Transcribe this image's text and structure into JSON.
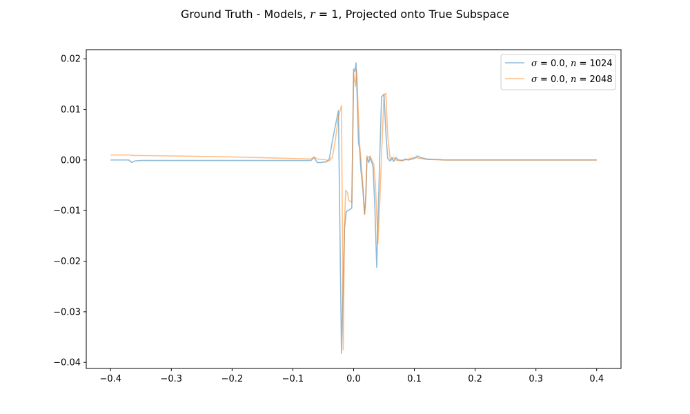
{
  "chart_data": {
    "type": "line",
    "title_parts": [
      "Ground Truth - Models, ",
      "r",
      " = 1, Projected onto True Subspace"
    ],
    "xlim": [
      -0.44,
      0.44
    ],
    "ylim": [
      -0.0412,
      0.0218
    ],
    "xticks": [
      -0.4,
      -0.3,
      -0.2,
      -0.1,
      0.0,
      0.1,
      0.2,
      0.3,
      0.4
    ],
    "xtick_labels": [
      "−0.4",
      "−0.3",
      "−0.2",
      "−0.1",
      "0.0",
      "0.1",
      "0.2",
      "0.3",
      "0.4"
    ],
    "yticks": [
      0.02,
      0.01,
      0.0,
      -0.01,
      -0.02,
      -0.03,
      -0.04
    ],
    "ytick_labels": [
      "0.02",
      "0.01",
      "0.00",
      "−0.01",
      "−0.02",
      "−0.03",
      "−0.04"
    ],
    "grid": false,
    "legend_position": "upper right",
    "series": [
      {
        "name": "σ = 0.0, n = 1024",
        "legend": {
          "sigma_sym": "σ",
          "sigma_val": " = 0.0, ",
          "n_sym": "n",
          "n_val": " = 1024"
        },
        "color": "#1f77b4",
        "x": [
          -0.4,
          -0.37,
          -0.365,
          -0.36,
          -0.35,
          -0.3,
          -0.2,
          -0.1,
          -0.07,
          -0.065,
          -0.06,
          -0.055,
          -0.05,
          -0.045,
          -0.04,
          -0.035,
          -0.03,
          -0.025,
          -0.02,
          -0.015,
          -0.012,
          -0.01,
          -0.008,
          -0.005,
          -0.003,
          0.0,
          0.002,
          0.004,
          0.006,
          0.008,
          0.01,
          0.012,
          0.015,
          0.018,
          0.02,
          0.022,
          0.025,
          0.027,
          0.03,
          0.032,
          0.035,
          0.038,
          0.04,
          0.043,
          0.046,
          0.05,
          0.053,
          0.056,
          0.06,
          0.063,
          0.066,
          0.07,
          0.073,
          0.076,
          0.08,
          0.085,
          0.09,
          0.1,
          0.105,
          0.11,
          0.12,
          0.15,
          0.2,
          0.3,
          0.4
        ],
        "y": [
          0.0,
          0.0,
          -0.0005,
          -0.0002,
          -0.0001,
          -0.0001,
          -0.0001,
          -0.0001,
          -0.0001,
          0.0005,
          -0.0005,
          -0.0005,
          -0.0004,
          -0.0004,
          0.0002,
          0.0037,
          0.0068,
          0.0098,
          -0.0382,
          -0.0135,
          -0.0102,
          -0.01,
          -0.0099,
          -0.0097,
          -0.0095,
          0.018,
          0.0175,
          0.0192,
          0.012,
          0.0035,
          0.002,
          -0.002,
          -0.0055,
          -0.0107,
          -0.0075,
          0.0005,
          -0.0005,
          0.0005,
          -0.0005,
          -0.0015,
          -0.0095,
          -0.0212,
          -0.0125,
          0.0005,
          0.0125,
          0.013,
          0.0055,
          0.0003,
          -0.0002,
          0.0005,
          -0.0003,
          0.0005,
          0.0,
          0.0,
          -0.0002,
          0.0002,
          0.0,
          0.0003,
          0.0008,
          0.0005,
          0.0002,
          0.0,
          0.0,
          0.0,
          0.0
        ]
      },
      {
        "name": "σ = 0.0, n = 2048",
        "legend": {
          "sigma_sym": "σ",
          "sigma_val": " = 0.0, ",
          "n_sym": "n",
          "n_val": " = 2048"
        },
        "color": "#ff7f0e",
        "x": [
          -0.4,
          -0.37,
          -0.365,
          -0.36,
          -0.3,
          -0.2,
          -0.1,
          -0.07,
          -0.065,
          -0.06,
          -0.05,
          -0.045,
          -0.04,
          -0.035,
          -0.03,
          -0.025,
          -0.02,
          -0.017,
          -0.015,
          -0.013,
          -0.01,
          -0.008,
          -0.005,
          -0.003,
          0.0,
          0.003,
          0.005,
          0.007,
          0.01,
          0.012,
          0.015,
          0.018,
          0.02,
          0.022,
          0.025,
          0.027,
          0.03,
          0.033,
          0.036,
          0.04,
          0.043,
          0.046,
          0.05,
          0.053,
          0.056,
          0.06,
          0.063,
          0.066,
          0.07,
          0.073,
          0.076,
          0.08,
          0.085,
          0.09,
          0.1,
          0.105,
          0.11,
          0.12,
          0.15,
          0.2,
          0.3,
          0.4
        ],
        "y": [
          0.001,
          0.001,
          0.0009,
          0.0009,
          0.0008,
          0.0006,
          0.0003,
          0.0002,
          0.0006,
          0.0002,
          0.0001,
          0.0,
          -0.0002,
          0.0005,
          0.004,
          0.0085,
          0.0108,
          -0.0375,
          -0.0125,
          -0.006,
          -0.0065,
          -0.008,
          -0.0082,
          -0.0084,
          0.0172,
          0.0145,
          0.0178,
          0.0115,
          0.003,
          0.0,
          -0.0045,
          -0.0108,
          -0.0075,
          0.0008,
          0.0005,
          0.0008,
          0.0,
          -0.0008,
          -0.005,
          -0.0165,
          -0.0085,
          0.001,
          0.0128,
          0.0132,
          0.005,
          0.0002,
          0.0,
          0.0005,
          0.0,
          -0.0001,
          -0.0001,
          0.0,
          0.0,
          0.0002,
          0.0005,
          0.0004,
          0.0003,
          0.0001,
          0.0,
          0.0,
          0.0,
          0.0
        ]
      }
    ]
  }
}
